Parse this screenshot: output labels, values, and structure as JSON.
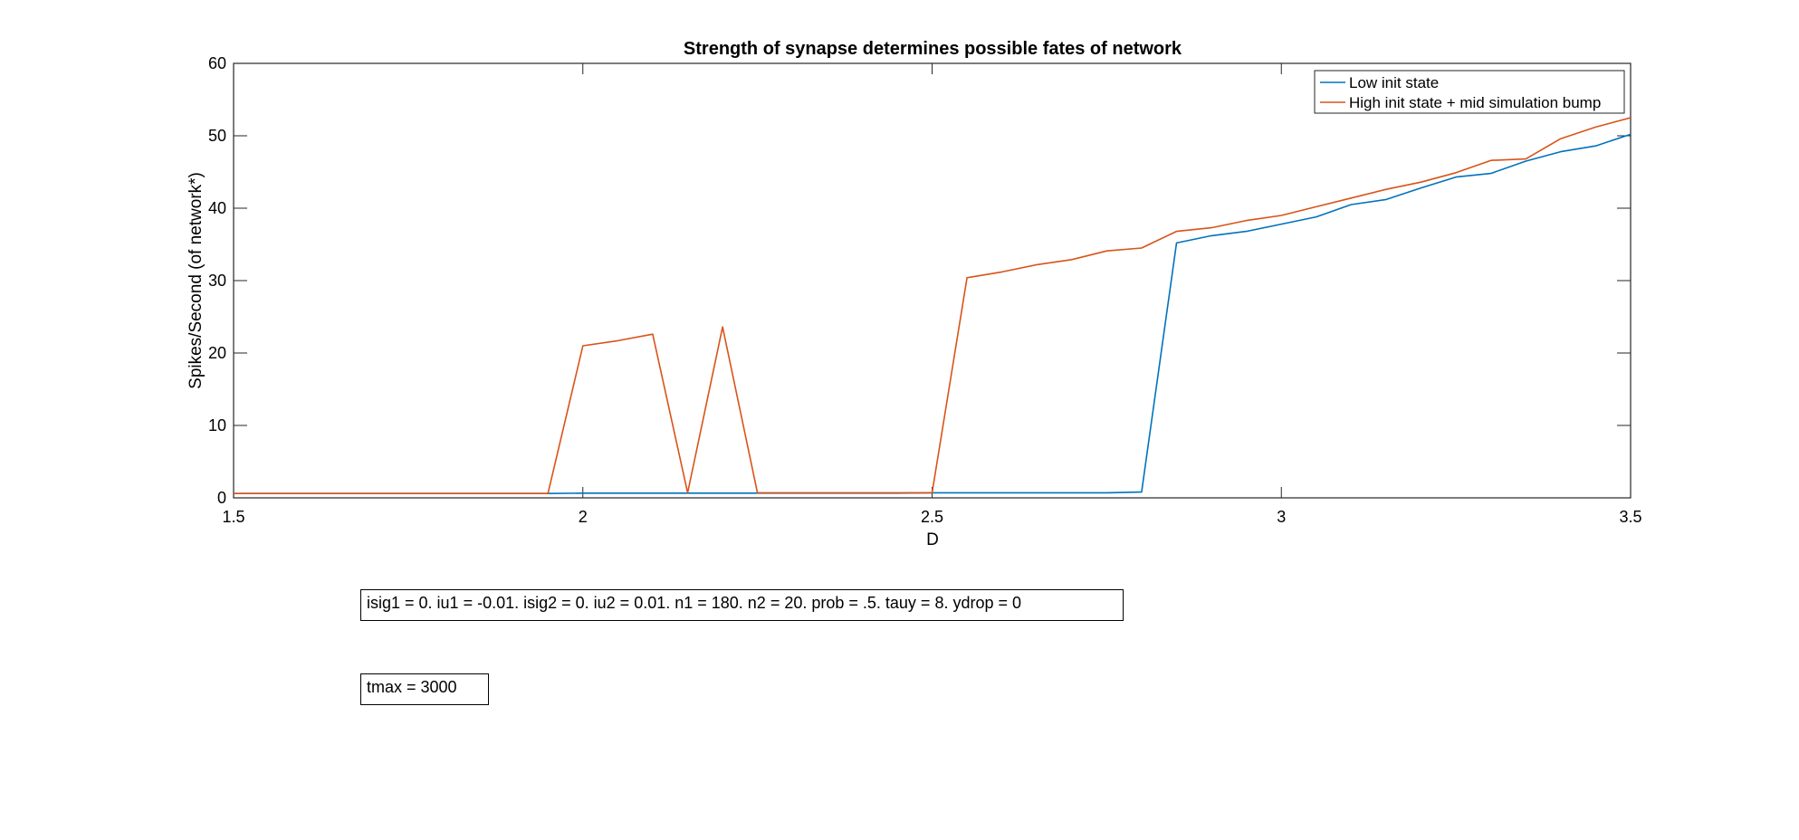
{
  "chart_data": {
    "type": "line",
    "title": "Strength of synapse determines possible fates of network",
    "xlabel": "D",
    "ylabel": "Spikes/Second (of network*)",
    "xlim": [
      1.5,
      3.5
    ],
    "ylim": [
      0,
      60
    ],
    "xticks": [
      1.5,
      2,
      2.5,
      3,
      3.5
    ],
    "xtick_labels": [
      "1.5",
      "2",
      "2.5",
      "3",
      "3.5"
    ],
    "yticks": [
      0,
      10,
      20,
      30,
      40,
      50,
      60
    ],
    "ytick_labels": [
      "0",
      "10",
      "20",
      "30",
      "40",
      "50",
      "60"
    ],
    "grid": false,
    "legend_position": "top-right",
    "series": [
      {
        "name": "Low init state",
        "color": "#0072BD",
        "x": [
          1.5,
          1.55,
          1.6,
          1.65,
          1.7,
          1.75,
          1.8,
          1.85,
          1.9,
          1.95,
          2.0,
          2.05,
          2.1,
          2.15,
          2.2,
          2.25,
          2.3,
          2.35,
          2.4,
          2.45,
          2.5,
          2.55,
          2.6,
          2.65,
          2.7,
          2.75,
          2.8,
          2.85,
          2.9,
          2.95,
          3.0,
          3.05,
          3.1,
          3.15,
          3.2,
          3.25,
          3.3,
          3.35,
          3.4,
          3.45,
          3.5
        ],
        "y": [
          0.6,
          0.6,
          0.6,
          0.6,
          0.6,
          0.6,
          0.6,
          0.6,
          0.6,
          0.6,
          0.65,
          0.65,
          0.65,
          0.65,
          0.65,
          0.65,
          0.65,
          0.65,
          0.65,
          0.65,
          0.7,
          0.7,
          0.7,
          0.7,
          0.7,
          0.7,
          0.8,
          35.2,
          36.2,
          36.8,
          37.8,
          38.8,
          40.5,
          41.2,
          42.8,
          44.3,
          44.8,
          46.5,
          47.8,
          48.6,
          50.2
        ]
      },
      {
        "name": "High init state + mid simulation bump",
        "color": "#D95319",
        "x": [
          1.5,
          1.55,
          1.6,
          1.65,
          1.7,
          1.75,
          1.8,
          1.85,
          1.9,
          1.95,
          2.0,
          2.05,
          2.1,
          2.15,
          2.2,
          2.25,
          2.3,
          2.35,
          2.4,
          2.45,
          2.5,
          2.55,
          2.6,
          2.65,
          2.7,
          2.75,
          2.8,
          2.85,
          2.9,
          2.95,
          3.0,
          3.05,
          3.1,
          3.15,
          3.2,
          3.25,
          3.3,
          3.35,
          3.4,
          3.45,
          3.5
        ],
        "y": [
          0.6,
          0.6,
          0.6,
          0.6,
          0.6,
          0.6,
          0.6,
          0.6,
          0.6,
          0.6,
          21.0,
          21.7,
          22.6,
          0.7,
          23.6,
          0.7,
          0.7,
          0.7,
          0.7,
          0.7,
          0.7,
          30.4,
          31.2,
          32.2,
          32.9,
          34.1,
          34.5,
          36.8,
          37.3,
          38.3,
          39.0,
          40.2,
          41.4,
          42.6,
          43.6,
          44.9,
          46.6,
          46.8,
          49.6,
          51.2,
          52.5
        ]
      }
    ]
  },
  "annotations": [
    {
      "text": "isig1 = 0. iu1 = -0.01. isig2 = 0. iu2 = 0.01. n1 = 180. n2 = 20. prob = .5. tauy = 8. ydrop = 0"
    },
    {
      "text": "tmax = 3000"
    }
  ]
}
